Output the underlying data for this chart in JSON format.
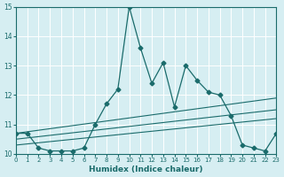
{
  "xlabel": "Humidex (Indice chaleur)",
  "ylabel": "",
  "xlim": [
    0,
    23
  ],
  "ylim": [
    10,
    15
  ],
  "yticks": [
    10,
    11,
    12,
    13,
    14,
    15
  ],
  "xticks": [
    0,
    1,
    2,
    3,
    4,
    5,
    6,
    7,
    8,
    9,
    10,
    11,
    12,
    13,
    14,
    15,
    16,
    17,
    18,
    19,
    20,
    21,
    22,
    23
  ],
  "bg_color": "#d6eef2",
  "line_color": "#1a6b6b",
  "grid_color": "#ffffff",
  "series": {
    "main": {
      "x": [
        0,
        1,
        2,
        3,
        4,
        5,
        6,
        7,
        8,
        9,
        10,
        11,
        12,
        13,
        14,
        15,
        16,
        17,
        18,
        19,
        20,
        21,
        22,
        23
      ],
      "y": [
        10.7,
        10.7,
        10.2,
        10.1,
        10.1,
        10.1,
        10.2,
        11.0,
        11.7,
        12.2,
        15.0,
        13.6,
        12.4,
        13.1,
        11.6,
        13.0,
        12.5,
        12.1,
        12.0,
        11.3,
        10.3,
        10.2,
        10.1,
        10.7
      ]
    },
    "trend1": {
      "x": [
        0,
        23
      ],
      "y": [
        10.7,
        11.9
      ]
    },
    "trend2": {
      "x": [
        0,
        23
      ],
      "y": [
        10.5,
        11.5
      ]
    },
    "trend3": {
      "x": [
        0,
        23
      ],
      "y": [
        10.3,
        11.2
      ]
    }
  }
}
